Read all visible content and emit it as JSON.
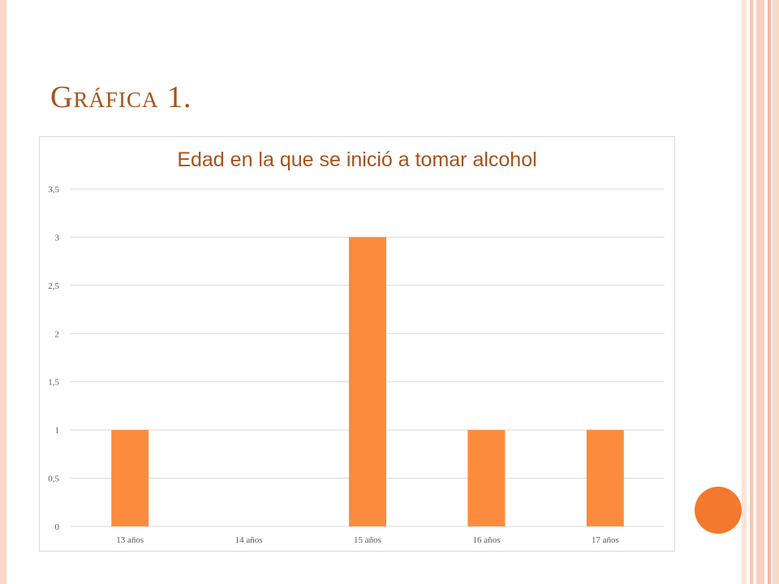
{
  "slide": {
    "title": "Gráfica 1."
  },
  "colors": {
    "bar": "#fd8b3d",
    "title": "#a8521a",
    "accent_dot": "#f4782e",
    "grid": "#d9d9d9"
  },
  "chart_data": {
    "type": "bar",
    "title": "Edad en la que se inició a tomar alcohol",
    "categories": [
      "13 años",
      "14 años",
      "15 años",
      "16 años",
      "17 años"
    ],
    "values": [
      1,
      0,
      3,
      1,
      1
    ],
    "ylim": [
      0,
      3.5
    ],
    "yticks": [
      "0",
      "0,5",
      "1",
      "1,5",
      "2",
      "2,5",
      "3",
      "3,5"
    ],
    "ytick_values": [
      0,
      0.5,
      1,
      1.5,
      2,
      2.5,
      3,
      3.5
    ],
    "grid": true,
    "legend": "none"
  }
}
